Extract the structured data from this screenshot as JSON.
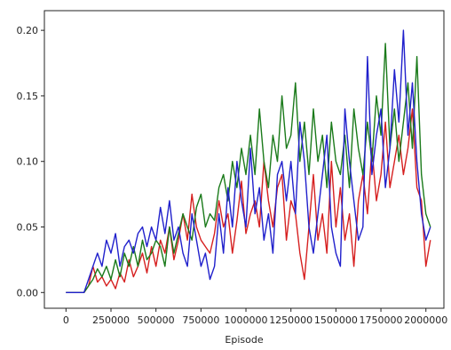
{
  "chart_data": {
    "type": "line",
    "title": "",
    "xlabel": "Episode",
    "ylabel": "",
    "xlim": [
      -120000,
      2100000
    ],
    "ylim": [
      -0.012,
      0.215
    ],
    "xticks": [
      0,
      250000,
      500000,
      750000,
      1000000,
      1250000,
      1500000,
      1750000,
      2000000
    ],
    "xtick_labels": [
      "0",
      "250000",
      "500000",
      "750000",
      "1000000",
      "1250000",
      "1500000",
      "1750000",
      "2000000"
    ],
    "yticks": [
      0.0,
      0.05,
      0.1,
      0.15,
      0.2
    ],
    "ytick_labels": [
      "0.00",
      "0.05",
      "0.10",
      "0.15",
      "0.20"
    ],
    "grid": false,
    "legend": "none",
    "x": [
      0,
      25000,
      50000,
      75000,
      100000,
      125000,
      150000,
      175000,
      200000,
      225000,
      250000,
      275000,
      300000,
      325000,
      350000,
      375000,
      400000,
      425000,
      450000,
      475000,
      500000,
      525000,
      550000,
      575000,
      600000,
      625000,
      650000,
      675000,
      700000,
      725000,
      750000,
      775000,
      800000,
      825000,
      850000,
      875000,
      900000,
      925000,
      950000,
      975000,
      1000000,
      1025000,
      1050000,
      1075000,
      1100000,
      1125000,
      1150000,
      1175000,
      1200000,
      1225000,
      1250000,
      1275000,
      1300000,
      1325000,
      1350000,
      1375000,
      1400000,
      1425000,
      1450000,
      1475000,
      1500000,
      1525000,
      1550000,
      1575000,
      1600000,
      1625000,
      1650000,
      1675000,
      1700000,
      1725000,
      1750000,
      1775000,
      1800000,
      1825000,
      1850000,
      1875000,
      1900000,
      1925000,
      1950000,
      1975000,
      2000000,
      2025000
    ],
    "series": [
      {
        "color": "#d62020",
        "values": [
          0.0,
          0.0,
          0.0,
          0.0,
          0.0,
          0.005,
          0.02,
          0.008,
          0.012,
          0.005,
          0.01,
          0.003,
          0.015,
          0.008,
          0.025,
          0.012,
          0.02,
          0.03,
          0.015,
          0.035,
          0.02,
          0.04,
          0.03,
          0.05,
          0.025,
          0.04,
          0.06,
          0.04,
          0.075,
          0.05,
          0.04,
          0.035,
          0.03,
          0.045,
          0.07,
          0.05,
          0.06,
          0.03,
          0.055,
          0.085,
          0.045,
          0.06,
          0.07,
          0.05,
          0.1,
          0.07,
          0.05,
          0.08,
          0.09,
          0.04,
          0.07,
          0.06,
          0.03,
          0.01,
          0.05,
          0.09,
          0.04,
          0.06,
          0.03,
          0.1,
          0.05,
          0.08,
          0.04,
          0.06,
          0.02,
          0.07,
          0.09,
          0.06,
          0.11,
          0.07,
          0.09,
          0.13,
          0.08,
          0.1,
          0.12,
          0.09,
          0.11,
          0.14,
          0.08,
          0.07,
          0.02,
          0.04
        ]
      },
      {
        "color": "#1a7a1a",
        "values": [
          0.0,
          0.0,
          0.0,
          0.0,
          0.0,
          0.005,
          0.01,
          0.018,
          0.012,
          0.02,
          0.01,
          0.025,
          0.012,
          0.03,
          0.02,
          0.035,
          0.02,
          0.04,
          0.025,
          0.03,
          0.04,
          0.035,
          0.02,
          0.05,
          0.03,
          0.045,
          0.06,
          0.05,
          0.04,
          0.065,
          0.075,
          0.05,
          0.06,
          0.055,
          0.08,
          0.09,
          0.07,
          0.1,
          0.08,
          0.11,
          0.09,
          0.12,
          0.09,
          0.14,
          0.1,
          0.08,
          0.12,
          0.1,
          0.15,
          0.11,
          0.12,
          0.16,
          0.1,
          0.13,
          0.09,
          0.14,
          0.1,
          0.12,
          0.08,
          0.13,
          0.1,
          0.09,
          0.12,
          0.08,
          0.14,
          0.11,
          0.09,
          0.13,
          0.1,
          0.15,
          0.12,
          0.19,
          0.11,
          0.14,
          0.1,
          0.13,
          0.16,
          0.11,
          0.18,
          0.09,
          0.06,
          0.05
        ]
      },
      {
        "color": "#2020cc",
        "values": [
          0.0,
          0.0,
          0.0,
          0.0,
          0.0,
          0.01,
          0.02,
          0.03,
          0.02,
          0.04,
          0.03,
          0.045,
          0.02,
          0.035,
          0.04,
          0.03,
          0.045,
          0.05,
          0.035,
          0.05,
          0.04,
          0.065,
          0.045,
          0.07,
          0.04,
          0.05,
          0.03,
          0.02,
          0.06,
          0.04,
          0.02,
          0.03,
          0.01,
          0.02,
          0.06,
          0.03,
          0.08,
          0.05,
          0.1,
          0.07,
          0.05,
          0.11,
          0.06,
          0.08,
          0.04,
          0.06,
          0.03,
          0.09,
          0.1,
          0.07,
          0.1,
          0.06,
          0.13,
          0.1,
          0.05,
          0.03,
          0.06,
          0.09,
          0.12,
          0.05,
          0.03,
          0.02,
          0.14,
          0.1,
          0.07,
          0.04,
          0.05,
          0.18,
          0.09,
          0.12,
          0.14,
          0.08,
          0.11,
          0.17,
          0.13,
          0.2,
          0.12,
          0.16,
          0.1,
          0.06,
          0.04,
          0.05
        ]
      }
    ]
  }
}
